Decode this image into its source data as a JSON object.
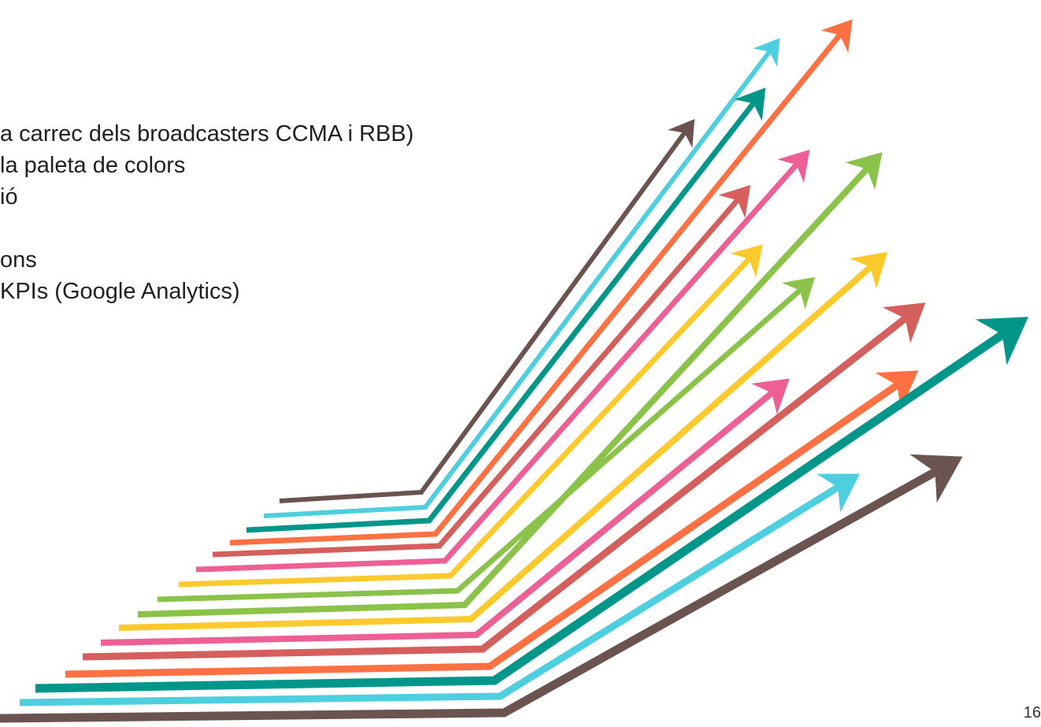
{
  "bullets": [
    "a carrec dels broadcasters CCMA i RBB)",
    " la paleta de colors",
    "ió",
    "",
    "ons",
    "KPIs (Google Analytics)"
  ],
  "slide_number": "16",
  "colors": {
    "brown": "#6b5350",
    "cyan": "#4ecfe0",
    "teal": "#00968a",
    "orange": "#ff7043",
    "red": "#d55f5d",
    "pink": "#ee5f96",
    "yellow": "#fdca2d",
    "green": "#8bc34a"
  },
  "arrows": [
    {
      "color": "brown"
    },
    {
      "color": "cyan"
    },
    {
      "color": "teal"
    },
    {
      "color": "orange"
    },
    {
      "color": "red"
    },
    {
      "color": "pink"
    },
    {
      "color": "yellow"
    },
    {
      "color": "green"
    },
    {
      "color": "yellow"
    },
    {
      "color": "green"
    },
    {
      "color": "pink"
    },
    {
      "color": "red"
    },
    {
      "color": "orange"
    },
    {
      "color": "teal"
    },
    {
      "color": "cyan"
    },
    {
      "color": "brown"
    }
  ]
}
